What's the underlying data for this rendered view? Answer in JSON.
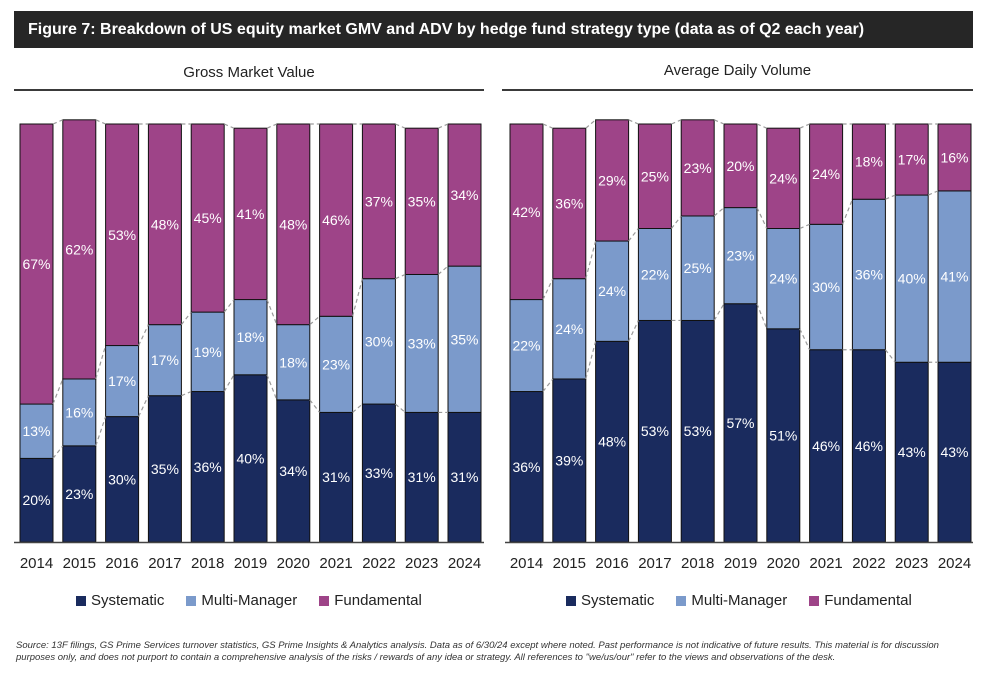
{
  "title": "Figure 7: Breakdown of US equity market GMV and ADV by hedge fund strategy type (data as of Q2 each year)",
  "colors": {
    "systematic": "#1a2b5e",
    "multi_manager": "#7b9acb",
    "fundamental": "#9e4488",
    "connector": "#9a9a9a",
    "axis": "#444444"
  },
  "legend": [
    {
      "key": "systematic",
      "label": "Systematic"
    },
    {
      "key": "multi_manager",
      "label": "Multi-Manager"
    },
    {
      "key": "fundamental",
      "label": "Fundamental"
    }
  ],
  "chart_data": [
    {
      "type": "bar",
      "stacked": true,
      "normalized_to": 100,
      "title": "Gross Market Value",
      "categories": [
        "2014",
        "2015",
        "2016",
        "2017",
        "2018",
        "2019",
        "2020",
        "2021",
        "2022",
        "2023",
        "2024"
      ],
      "series": [
        {
          "name": "Systematic",
          "key": "systematic",
          "values": [
            20,
            23,
            30,
            35,
            36,
            40,
            34,
            31,
            33,
            31,
            31
          ]
        },
        {
          "name": "Multi-Manager",
          "key": "multi_manager",
          "values": [
            13,
            16,
            17,
            17,
            19,
            18,
            18,
            23,
            30,
            33,
            35
          ]
        },
        {
          "name": "Fundamental",
          "key": "fundamental",
          "values": [
            67,
            62,
            53,
            48,
            45,
            41,
            48,
            46,
            37,
            35,
            34
          ]
        }
      ],
      "xlabel": "",
      "ylabel": "",
      "ylim": [
        0,
        100
      ],
      "label_format": "percent"
    },
    {
      "type": "bar",
      "stacked": true,
      "normalized_to": 100,
      "title": "Average Daily Volume",
      "categories": [
        "2014",
        "2015",
        "2016",
        "2017",
        "2018",
        "2019",
        "2020",
        "2021",
        "2022",
        "2023",
        "2024"
      ],
      "series": [
        {
          "name": "Systematic",
          "key": "systematic",
          "values": [
            36,
            39,
            48,
            53,
            53,
            57,
            51,
            46,
            46,
            43,
            43
          ]
        },
        {
          "name": "Multi-Manager",
          "key": "multi_manager",
          "values": [
            22,
            24,
            24,
            22,
            25,
            23,
            24,
            30,
            36,
            40,
            41
          ]
        },
        {
          "name": "Fundamental",
          "key": "fundamental",
          "values": [
            42,
            36,
            29,
            25,
            23,
            20,
            24,
            24,
            18,
            17,
            16
          ]
        }
      ],
      "xlabel": "",
      "ylabel": "",
      "ylim": [
        0,
        100
      ],
      "label_format": "percent"
    }
  ],
  "source": "Source: 13F filings, GS Prime Services turnover statistics, GS Prime Insights & Analytics analysis. Data as of 6/30/24 except where noted. Past performance is not indicative of future results. This material is for discussion purposes only, and does not purport to contain a comprehensive analysis of the risks / rewards of any idea or strategy. All references to \"we/us/our\" refer to the views and observations of the desk."
}
